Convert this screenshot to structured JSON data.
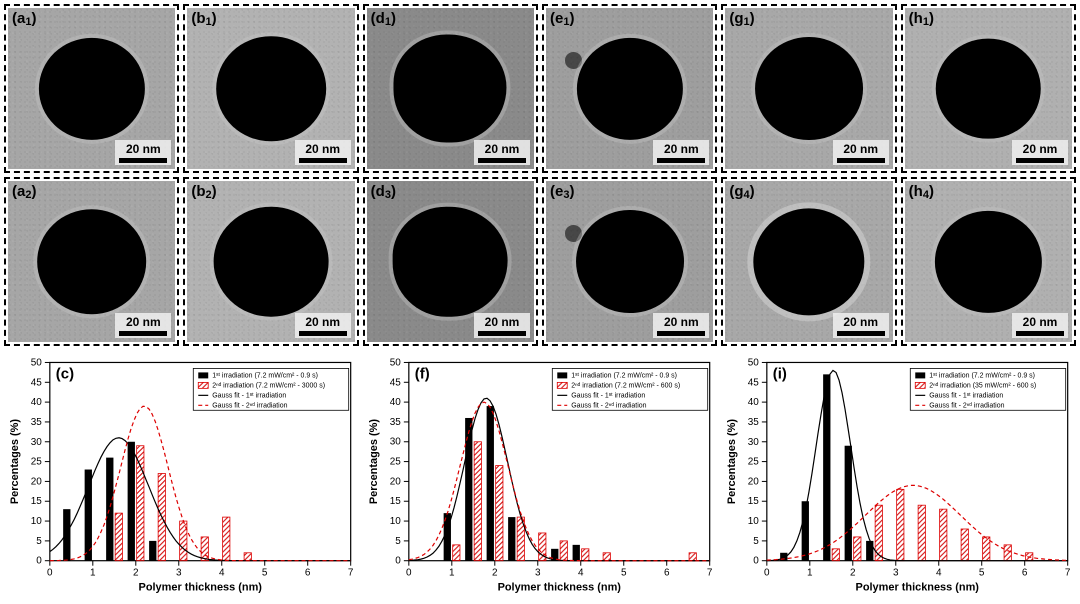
{
  "cells": [
    {
      "label": "(a",
      "sub": "1",
      "bg": "#a6a6a6",
      "particle_w": 62
    },
    {
      "label": "(b",
      "sub": "1",
      "bg": "#b2b2b2",
      "particle_w": 64
    },
    {
      "label": "(d",
      "sub": "1",
      "bg": "#8a8a8a",
      "particle_w": 66,
      "shape": "irreg"
    },
    {
      "label": "(e",
      "sub": "1",
      "bg": "#9e9e9e",
      "particle_w": 62,
      "dot": true
    },
    {
      "label": "(g",
      "sub": "1",
      "bg": "#a8a8a8",
      "particle_w": 63
    },
    {
      "label": "(h",
      "sub": "1",
      "bg": "#b0b0b0",
      "particle_w": 61
    },
    {
      "label": "(a",
      "sub": "2",
      "bg": "#a6a6a6",
      "particle_w": 64
    },
    {
      "label": "(b",
      "sub": "2",
      "bg": "#b2b2b2",
      "particle_w": 67
    },
    {
      "label": "(d",
      "sub": "3",
      "bg": "#8a8a8a",
      "particle_w": 67,
      "shape": "irreg"
    },
    {
      "label": "(e",
      "sub": "3",
      "bg": "#9e9e9e",
      "particle_w": 63,
      "dot": true
    },
    {
      "label": "(g",
      "sub": "4",
      "bg": "#a8a8a8",
      "particle_w": 65,
      "halo": true
    },
    {
      "label": "(h",
      "sub": "4",
      "bg": "#b0b0b0",
      "particle_w": 62
    }
  ],
  "scale_text": "20 nm",
  "charts": [
    {
      "label": "(c)",
      "x_title": "Polymer thickness (nm)",
      "y_title": "Percentages (%)",
      "xlim": [
        0,
        7
      ],
      "ylim": [
        0,
        50
      ],
      "xticks": [
        0,
        1,
        2,
        3,
        4,
        5,
        6,
        7
      ],
      "yticks": [
        0,
        5,
        10,
        15,
        20,
        25,
        30,
        35,
        40,
        45,
        50
      ],
      "black_bars": [
        {
          "x": 0.5,
          "y": 13
        },
        {
          "x": 1.0,
          "y": 23
        },
        {
          "x": 1.5,
          "y": 26
        },
        {
          "x": 2.0,
          "y": 30
        },
        {
          "x": 2.5,
          "y": 5
        }
      ],
      "red_bars": [
        {
          "x": 1.5,
          "y": 12
        },
        {
          "x": 2.0,
          "y": 29
        },
        {
          "x": 2.5,
          "y": 22
        },
        {
          "x": 3.0,
          "y": 10
        },
        {
          "x": 3.5,
          "y": 6
        },
        {
          "x": 4.0,
          "y": 11
        },
        {
          "x": 4.5,
          "y": 2
        }
      ],
      "g1": {
        "mu": 1.6,
        "sigma": 0.7,
        "amp": 31
      },
      "g2": {
        "mu": 2.2,
        "sigma": 0.55,
        "amp": 39
      },
      "legend": [
        "1ˢᵗ irradiation (7.2 mW/cm² - 0.9 s)",
        "2ⁿᵈ irradiation (7.2 mW/cm² - 3000 s)",
        "Gauss fit - 1ˢᵗ irradiation",
        "Gauss fit - 2ⁿᵈ irradiation"
      ]
    },
    {
      "label": "(f)",
      "x_title": "Polymer thickness (nm)",
      "y_title": "Percentages (%)",
      "xlim": [
        0,
        7
      ],
      "ylim": [
        0,
        50
      ],
      "xticks": [
        0,
        1,
        2,
        3,
        4,
        5,
        6,
        7
      ],
      "yticks": [
        0,
        5,
        10,
        15,
        20,
        25,
        30,
        35,
        40,
        45,
        50
      ],
      "black_bars": [
        {
          "x": 1.0,
          "y": 12
        },
        {
          "x": 1.5,
          "y": 36
        },
        {
          "x": 2.0,
          "y": 39
        },
        {
          "x": 2.5,
          "y": 11
        },
        {
          "x": 3.5,
          "y": 3
        },
        {
          "x": 4.0,
          "y": 4
        }
      ],
      "red_bars": [
        {
          "x": 1.0,
          "y": 4
        },
        {
          "x": 1.5,
          "y": 30
        },
        {
          "x": 2.0,
          "y": 24
        },
        {
          "x": 2.5,
          "y": 11
        },
        {
          "x": 3.0,
          "y": 7
        },
        {
          "x": 3.5,
          "y": 5
        },
        {
          "x": 4.0,
          "y": 3
        },
        {
          "x": 4.5,
          "y": 2
        },
        {
          "x": 6.5,
          "y": 2
        }
      ],
      "g1": {
        "mu": 1.8,
        "sigma": 0.5,
        "amp": 41
      },
      "g2": {
        "mu": 1.75,
        "sigma": 0.55,
        "amp": 40
      },
      "legend": [
        "1ˢᵗ irradiation (7.2 mW/cm² - 0.9 s)",
        "2ⁿᵈ irradiation (7.2 mW/cm² - 600 s)",
        "Gauss fit - 1ˢᵗ irradiation",
        "Gauss fit - 2ⁿᵈ irradiation"
      ]
    },
    {
      "label": "(i)",
      "x_title": "Polymer thickness (nm)",
      "y_title": "Percentages (%)",
      "xlim": [
        0,
        7
      ],
      "ylim": [
        0,
        50
      ],
      "xticks": [
        0,
        1,
        2,
        3,
        4,
        5,
        6,
        7
      ],
      "yticks": [
        0,
        5,
        10,
        15,
        20,
        25,
        30,
        35,
        40,
        45,
        50
      ],
      "black_bars": [
        {
          "x": 0.5,
          "y": 2
        },
        {
          "x": 1.0,
          "y": 15
        },
        {
          "x": 1.5,
          "y": 47
        },
        {
          "x": 2.0,
          "y": 29
        },
        {
          "x": 2.5,
          "y": 5
        }
      ],
      "red_bars": [
        {
          "x": 1.5,
          "y": 3
        },
        {
          "x": 2.0,
          "y": 6
        },
        {
          "x": 2.5,
          "y": 14
        },
        {
          "x": 3.0,
          "y": 18
        },
        {
          "x": 3.5,
          "y": 14
        },
        {
          "x": 4.0,
          "y": 13
        },
        {
          "x": 4.5,
          "y": 8
        },
        {
          "x": 5.0,
          "y": 6
        },
        {
          "x": 5.5,
          "y": 4
        },
        {
          "x": 6.0,
          "y": 2
        }
      ],
      "g1": {
        "mu": 1.55,
        "sigma": 0.4,
        "amp": 48
      },
      "g2": {
        "mu": 3.4,
        "sigma": 1.1,
        "amp": 19
      },
      "legend": [
        "1ˢᵗ irradiation (7.2 mW/cm² - 0.9 s)",
        "2ⁿᵈ irradiation (35 mW/cm² - 600 s)",
        "Gauss fit - 1ˢᵗ irradiation",
        "Gauss fit - 2ⁿᵈ irradiation"
      ]
    }
  ],
  "colors": {
    "black": "#000000",
    "red": "#d00000"
  }
}
